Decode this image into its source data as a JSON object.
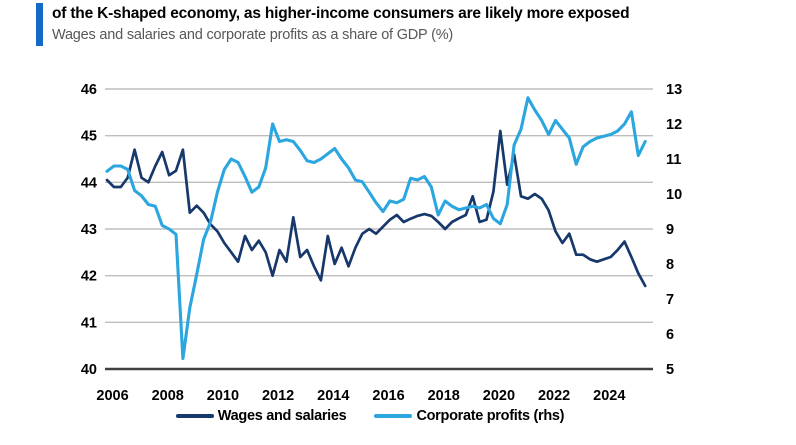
{
  "header": {
    "title": "of the K-shaped economy, as higher-income consumers are likely more exposed",
    "subtitle": "Wages and salaries and corporate profits as a share of GDP (%)"
  },
  "colors": {
    "accent_bar": "#1569c7",
    "wages_line": "#17386b",
    "profits_line": "#2ba6df",
    "gridline": "#bdbdbd",
    "axis_line": "#404040",
    "tick_text": "#000000"
  },
  "chart_data": {
    "type": "line",
    "title": "of the K-shaped economy, as higher-income consumers are likely more exposed",
    "subtitle": "Wages and salaries and corporate profits as a share of GDP (%)",
    "x_unit": "quarter",
    "x_start": "2006Q1",
    "x_end": "2025Q3",
    "x_tick_labels": [
      "2006",
      "2008",
      "2010",
      "2012",
      "2014",
      "2016",
      "2018",
      "2020",
      "2022",
      "2024"
    ],
    "left_axis": {
      "label": "Wages and salaries (% of GDP)",
      "range": [
        40,
        46
      ],
      "ticks": [
        40,
        41,
        42,
        43,
        44,
        45,
        46
      ]
    },
    "right_axis": {
      "label": "Corporate profits (% of GDP, rhs)",
      "range": [
        5,
        13
      ],
      "ticks": [
        5,
        6,
        7,
        8,
        9,
        10,
        11,
        12,
        13
      ]
    },
    "grid": "horizontal",
    "legend_position": "bottom",
    "series": [
      {
        "name": "Wages and salaries",
        "axis": "left",
        "color": "#17386b",
        "values": [
          44.05,
          43.9,
          43.9,
          44.1,
          44.7,
          44.1,
          44.0,
          44.35,
          44.65,
          44.15,
          44.25,
          44.7,
          43.35,
          43.5,
          43.35,
          43.1,
          42.95,
          42.7,
          42.5,
          42.3,
          42.85,
          42.55,
          42.75,
          42.5,
          42.0,
          42.55,
          42.3,
          43.25,
          42.4,
          42.55,
          42.2,
          41.9,
          42.85,
          42.25,
          42.6,
          42.2,
          42.6,
          42.9,
          43.0,
          42.9,
          43.05,
          43.2,
          43.3,
          43.15,
          43.22,
          43.28,
          43.32,
          43.28,
          43.15,
          43.0,
          43.15,
          43.23,
          43.3,
          43.7,
          43.15,
          43.2,
          43.8,
          45.1,
          43.95,
          44.6,
          43.7,
          43.65,
          43.75,
          43.65,
          43.4,
          42.95,
          42.7,
          42.9,
          42.45,
          42.45,
          42.35,
          42.3,
          42.35,
          42.4,
          42.55,
          42.73,
          42.4,
          42.05,
          41.78
        ]
      },
      {
        "name": "Corporate profits (rhs)",
        "axis": "right",
        "color": "#2ba6df",
        "values": [
          10.65,
          10.8,
          10.8,
          10.7,
          10.1,
          9.95,
          9.7,
          9.65,
          9.1,
          9.0,
          8.85,
          5.3,
          6.75,
          7.7,
          8.7,
          9.2,
          10.05,
          10.7,
          11.0,
          10.9,
          10.5,
          10.05,
          10.2,
          10.75,
          12.0,
          11.5,
          11.55,
          11.5,
          11.25,
          10.95,
          10.9,
          11.0,
          11.15,
          11.3,
          11.0,
          10.75,
          10.4,
          10.35,
          10.05,
          9.75,
          9.5,
          9.8,
          9.75,
          9.85,
          10.45,
          10.4,
          10.5,
          10.2,
          9.4,
          9.8,
          9.65,
          9.55,
          9.6,
          9.65,
          9.6,
          9.7,
          9.3,
          9.15,
          9.7,
          11.4,
          11.85,
          12.75,
          12.4,
          12.1,
          11.7,
          12.1,
          11.85,
          11.6,
          10.85,
          11.35,
          11.5,
          11.6,
          11.65,
          11.7,
          11.8,
          12.0,
          12.35,
          11.1,
          11.5
        ]
      }
    ]
  }
}
